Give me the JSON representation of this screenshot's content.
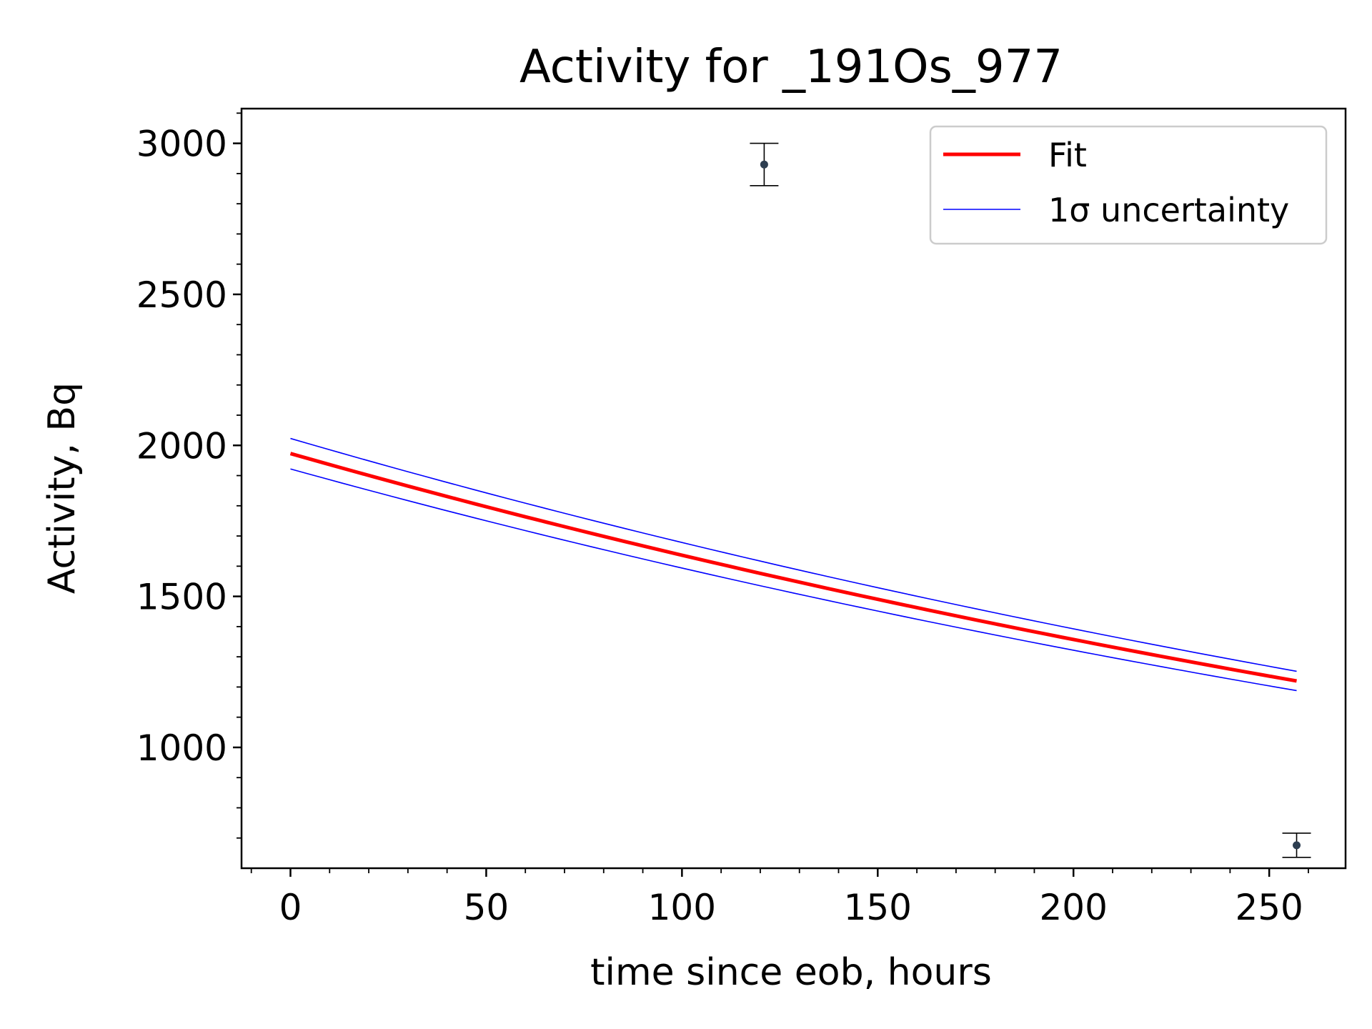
{
  "chart_data": {
    "type": "scatter",
    "title": "Activity for _191Os_977",
    "xlabel": "time since eob, hours",
    "ylabel": "Activity, Bq",
    "xlim": [
      -12.5,
      269.5
    ],
    "ylim": [
      600,
      3115
    ],
    "x_ticks": [
      0,
      50,
      100,
      150,
      200,
      250
    ],
    "y_ticks": [
      1000,
      1500,
      2000,
      2500,
      3000
    ],
    "x_tick_labels": [
      "0",
      "50",
      "100",
      "150",
      "200",
      "250"
    ],
    "y_tick_labels": [
      "1000",
      "1500",
      "2000",
      "2500",
      "3000"
    ],
    "grid": false,
    "legend_position": "top-right",
    "series": [
      {
        "name": "Fit",
        "kind": "line",
        "color": "#ff0000",
        "x": [
          0,
          257
        ],
        "y": [
          1973,
          1220
        ],
        "decay_curve": true
      },
      {
        "name": "1σ uncertainty",
        "kind": "line",
        "color": "#0000ff",
        "bands": [
          {
            "x": [
              0,
              257
            ],
            "y": [
              2023,
              1252
            ]
          },
          {
            "x": [
              0,
              257
            ],
            "y": [
              1922,
              1188
            ]
          }
        ]
      },
      {
        "kind": "errorbar-points",
        "color": "#2d3e50",
        "points": [
          {
            "x": 121,
            "y": 2930,
            "err": 70
          },
          {
            "x": 257,
            "y": 676,
            "err": 40
          }
        ]
      }
    ]
  }
}
